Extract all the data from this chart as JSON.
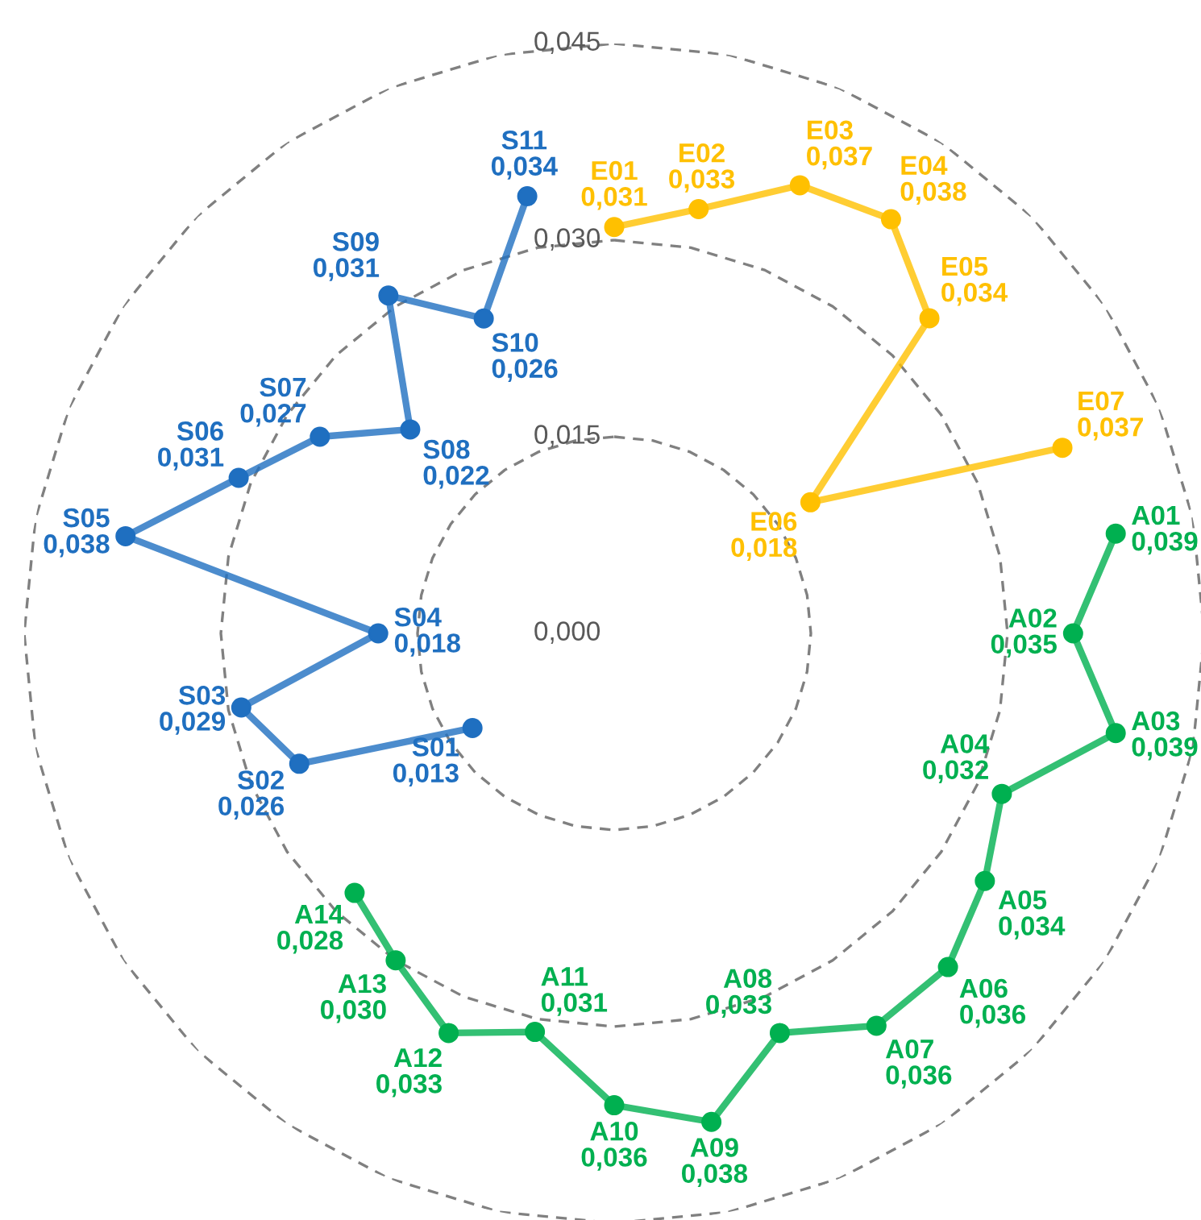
{
  "chart_data": {
    "type": "radar",
    "categories": [
      "E01",
      "E02",
      "E03",
      "E04",
      "E05",
      "E06",
      "E07",
      "A01",
      "A02",
      "A03",
      "A04",
      "A05",
      "A06",
      "A07",
      "A08",
      "A09",
      "A10",
      "A11",
      "A12",
      "A13",
      "A14",
      "S01",
      "S02",
      "S03",
      "S04",
      "S05",
      "S06",
      "S07",
      "S08",
      "S09",
      "S10",
      "S11"
    ],
    "series": [
      {
        "color": "#ffc000",
        "values": [
          0.031,
          0.033,
          0.037,
          0.038,
          0.034,
          0.018,
          0.037,
          null,
          null,
          null,
          null,
          null,
          null,
          null,
          null,
          null,
          null,
          null,
          null,
          null,
          null,
          null,
          null,
          null,
          null,
          null,
          null,
          null,
          null,
          null,
          null,
          null
        ],
        "value_labels": [
          "0,031",
          "0,033",
          "0,037",
          "0,038",
          "0,034",
          "0,018",
          "0,037",
          null,
          null,
          null,
          null,
          null,
          null,
          null,
          null,
          null,
          null,
          null,
          null,
          null,
          null,
          null,
          null,
          null,
          null,
          null,
          null,
          null,
          null,
          null,
          null,
          null
        ]
      },
      {
        "color": "#00b050",
        "values": [
          null,
          null,
          null,
          null,
          null,
          null,
          null,
          0.039,
          0.035,
          0.039,
          0.032,
          0.034,
          0.036,
          0.036,
          0.033,
          0.038,
          0.036,
          0.031,
          0.033,
          0.03,
          0.028,
          null,
          null,
          null,
          null,
          null,
          null,
          null,
          null,
          null,
          null,
          null
        ],
        "value_labels": [
          null,
          null,
          null,
          null,
          null,
          null,
          null,
          "0,039",
          "0,035",
          "0,039",
          "0,032",
          "0,034",
          "0,036",
          "0,036",
          "0,033",
          "0,038",
          "0,036",
          "0,031",
          "0,033",
          "0,030",
          "0,028",
          null,
          null,
          null,
          null,
          null,
          null,
          null,
          null,
          null,
          null,
          null
        ]
      },
      {
        "color": "#1f6fc0",
        "values": [
          null,
          null,
          null,
          null,
          null,
          null,
          null,
          null,
          null,
          null,
          null,
          null,
          null,
          null,
          null,
          null,
          null,
          null,
          null,
          null,
          null,
          0.013,
          0.026,
          0.029,
          0.018,
          0.038,
          0.031,
          0.027,
          0.022,
          0.031,
          0.026,
          0.034
        ],
        "value_labels": [
          null,
          null,
          null,
          null,
          null,
          null,
          null,
          null,
          null,
          null,
          null,
          null,
          null,
          null,
          null,
          null,
          null,
          null,
          null,
          null,
          null,
          "0,013",
          "0,026",
          "0,029",
          "0,018",
          "0,038",
          "0,031",
          "0,027",
          "0,022",
          "0,031",
          "0,026",
          "0,034"
        ]
      }
    ],
    "ylim": [
      0,
      0.045
    ],
    "yticks": [
      {
        "value": 0,
        "label": "0,000"
      },
      {
        "value": 0.015,
        "label": "0,015"
      },
      {
        "value": 0.03,
        "label": "0,030"
      },
      {
        "value": 0.045,
        "label": "0,045"
      }
    ],
    "grid": true,
    "marker": "circle",
    "line_style": "solid"
  }
}
